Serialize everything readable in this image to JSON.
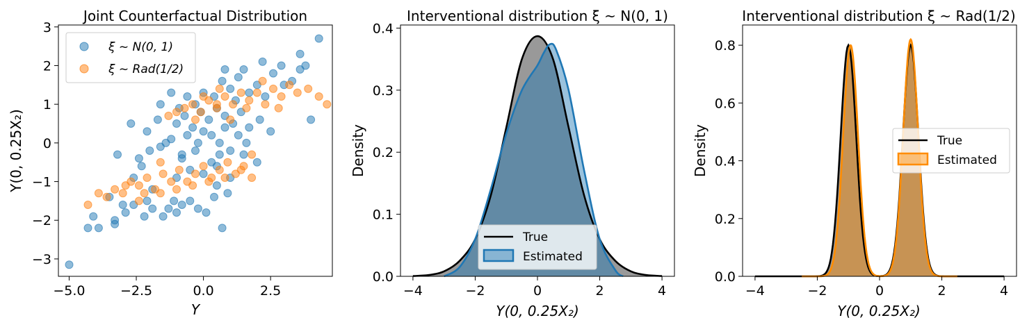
{
  "colors": {
    "blue": "#1f77b4",
    "orange": "#ff7f0e",
    "true_line": "#000000",
    "true_fill": "#808080",
    "est_fill_blue": "#3478a8",
    "est_fill_orange": "#d9852a",
    "dark_orange_line": "#ff8c00"
  },
  "chart_data": [
    {
      "type": "scatter",
      "title": "Joint Counterfactual Distribution",
      "xlabel": "Y",
      "ylabel": "Y(0, 0.25X₂)",
      "xlim": [
        -5.4,
        4.8
      ],
      "ylim": [
        -3.45,
        3.05
      ],
      "x_ticks": [
        -5.0,
        -2.5,
        0.0,
        2.5
      ],
      "x_tick_labels": [
        "−5.0",
        "−2.5",
        "0.0",
        "2.5"
      ],
      "y_ticks": [
        -3,
        -2,
        -1,
        0,
        1,
        2,
        3
      ],
      "y_tick_labels": [
        "−3",
        "−2",
        "−1",
        "0",
        "1",
        "2",
        "3"
      ],
      "legend_position": "upper-left",
      "series": [
        {
          "name": "ξ ~ N(0, 1)",
          "points": [
            [
              -5.0,
              -3.15
            ],
            [
              -4.3,
              -2.2
            ],
            [
              -3.9,
              -2.2
            ],
            [
              -4.1,
              -1.9
            ],
            [
              -3.3,
              -2.0
            ],
            [
              -3.3,
              -2.1
            ],
            [
              -3.0,
              -1.6
            ],
            [
              -3.5,
              -1.4
            ],
            [
              -2.9,
              -1.8
            ],
            [
              -2.6,
              -1.6
            ],
            [
              -2.2,
              -1.9
            ],
            [
              -2.1,
              -1.5
            ],
            [
              -1.9,
              -1.7
            ],
            [
              -1.5,
              -1.9
            ],
            [
              -1.3,
              -1.7
            ],
            [
              -1.0,
              -1.8
            ],
            [
              -0.8,
              -1.6
            ],
            [
              -0.5,
              -1.5
            ],
            [
              -0.2,
              -1.7
            ],
            [
              0.1,
              -1.8
            ],
            [
              0.4,
              -1.4
            ],
            [
              0.7,
              -2.2
            ],
            [
              0.5,
              -1.1
            ],
            [
              0.9,
              -1.3
            ],
            [
              -1.1,
              -1.5
            ],
            [
              -1.9,
              -1.2
            ],
            [
              -3.2,
              -0.3
            ],
            [
              -2.4,
              -0.4
            ],
            [
              -2.0,
              -0.2
            ],
            [
              -1.6,
              -0.1
            ],
            [
              -1.2,
              0.1
            ],
            [
              -0.8,
              -0.3
            ],
            [
              -0.6,
              0.2
            ],
            [
              -0.3,
              -0.2
            ],
            [
              0.0,
              0.3
            ],
            [
              0.3,
              -0.5
            ],
            [
              0.6,
              0.0
            ],
            [
              0.8,
              0.4
            ],
            [
              1.0,
              -0.2
            ],
            [
              1.3,
              0.2
            ],
            [
              1.6,
              0.0
            ],
            [
              2.0,
              -0.5
            ],
            [
              -2.7,
              0.5
            ],
            [
              -2.1,
              0.3
            ],
            [
              -1.7,
              0.6
            ],
            [
              -1.4,
              0.0
            ],
            [
              -1.0,
              0.5
            ],
            [
              -0.7,
              0.7
            ],
            [
              -0.4,
              0.4
            ],
            [
              -0.1,
              0.8
            ],
            [
              0.2,
              0.6
            ],
            [
              0.5,
              0.9
            ],
            [
              0.8,
              0.7
            ],
            [
              1.1,
              0.5
            ],
            [
              1.4,
              0.8
            ],
            [
              1.7,
              0.4
            ],
            [
              2.1,
              0.6
            ],
            [
              2.5,
              0.3
            ],
            [
              -1.6,
              1.0
            ],
            [
              -1.2,
              1.3
            ],
            [
              -0.9,
              0.9
            ],
            [
              -0.6,
              1.2
            ],
            [
              -0.3,
              1.0
            ],
            [
              0.0,
              1.3
            ],
            [
              0.4,
              1.2
            ],
            [
              0.7,
              1.6
            ],
            [
              1.0,
              1.4
            ],
            [
              1.3,
              1.7
            ],
            [
              1.7,
              1.3
            ],
            [
              2.0,
              1.5
            ],
            [
              2.3,
              1.2
            ],
            [
              2.6,
              1.8
            ],
            [
              3.0,
              1.5
            ],
            [
              3.3,
              1.6
            ],
            [
              3.6,
              1.9
            ],
            [
              3.8,
              2.0
            ],
            [
              4.0,
              0.6
            ],
            [
              4.3,
              2.7
            ],
            [
              3.6,
              2.3
            ],
            [
              2.9,
              2.0
            ],
            [
              2.2,
              2.1
            ],
            [
              1.5,
              1.9
            ],
            [
              0.8,
              1.9
            ],
            [
              1.2,
              1.1
            ],
            [
              -1.0,
              -0.9
            ],
            [
              -0.5,
              -0.7
            ],
            [
              0.0,
              -0.8
            ],
            [
              0.5,
              -0.6
            ],
            [
              1.0,
              -0.9
            ],
            [
              -0.2,
              0.0
            ],
            [
              0.3,
              0.2
            ],
            [
              -0.8,
              -0.4
            ],
            [
              1.5,
              -0.3
            ],
            [
              -2.6,
              -0.9
            ],
            [
              -2.3,
              -0.6
            ],
            [
              0.6,
              -0.3
            ]
          ]
        },
        {
          "name": "ξ ~ Rad(1/2)",
          "points": [
            [
              -4.3,
              -1.6
            ],
            [
              -3.9,
              -1.3
            ],
            [
              -3.6,
              -1.4
            ],
            [
              -3.3,
              -1.2
            ],
            [
              -3.0,
              -1.3
            ],
            [
              -2.7,
              -1.0
            ],
            [
              -2.4,
              -1.1
            ],
            [
              -2.1,
              -0.9
            ],
            [
              -1.8,
              -1.2
            ],
            [
              -1.5,
              -0.8
            ],
            [
              -1.2,
              -1.0
            ],
            [
              -0.9,
              -0.7
            ],
            [
              -0.6,
              -1.0
            ],
            [
              -0.3,
              -0.8
            ],
            [
              0.0,
              -0.6
            ],
            [
              0.3,
              -0.9
            ],
            [
              0.6,
              -0.7
            ],
            [
              0.9,
              -0.5
            ],
            [
              1.2,
              -0.8
            ],
            [
              1.5,
              -0.6
            ],
            [
              1.8,
              -0.9
            ],
            [
              -2.9,
              -1.1
            ],
            [
              -2.2,
              -1.3
            ],
            [
              -1.6,
              -1.3
            ],
            [
              -1.0,
              -1.2
            ],
            [
              -0.4,
              -1.1
            ],
            [
              0.2,
              -1.0
            ],
            [
              0.8,
              -0.9
            ],
            [
              1.4,
              -0.7
            ],
            [
              -1.3,
              0.7
            ],
            [
              -1.0,
              0.8
            ],
            [
              -0.7,
              0.9
            ],
            [
              -0.4,
              1.0
            ],
            [
              -0.1,
              0.8
            ],
            [
              0.2,
              1.1
            ],
            [
              0.5,
              0.9
            ],
            [
              0.8,
              1.2
            ],
            [
              1.1,
              1.0
            ],
            [
              1.4,
              1.3
            ],
            [
              1.7,
              1.1
            ],
            [
              2.0,
              1.3
            ],
            [
              2.3,
              1.0
            ],
            [
              2.6,
              1.4
            ],
            [
              2.9,
              1.2
            ],
            [
              3.2,
              1.5
            ],
            [
              3.5,
              1.3
            ],
            [
              3.9,
              1.4
            ],
            [
              4.3,
              1.2
            ],
            [
              4.6,
              1.0
            ],
            [
              -0.3,
              0.6
            ],
            [
              0.0,
              1.2
            ],
            [
              0.6,
              1.4
            ],
            [
              1.0,
              0.6
            ],
            [
              1.6,
              0.9
            ],
            [
              2.2,
              1.6
            ],
            [
              2.8,
              0.9
            ],
            [
              1.8,
              -0.3
            ],
            [
              -1.6,
              -0.5
            ],
            [
              -2.4,
              -1.5
            ],
            [
              0.5,
              1.0
            ]
          ]
        }
      ]
    },
    {
      "type": "area",
      "title": "Interventional distribution ξ ~ N(0, 1)",
      "xlabel": "Y(0, 0.25X₂)",
      "ylabel": "Density",
      "xlim": [
        -4.4,
        4.4
      ],
      "ylim": [
        0.0,
        0.405
      ],
      "x_ticks": [
        -4,
        -2,
        0,
        2,
        4
      ],
      "x_tick_labels": [
        "−4",
        "−2",
        "0",
        "2",
        "4"
      ],
      "y_ticks": [
        0.0,
        0.1,
        0.2,
        0.3,
        0.4
      ],
      "y_tick_labels": [
        "0.0",
        "0.1",
        "0.2",
        "0.3",
        "0.4"
      ],
      "legend_position": "lower-center",
      "series": [
        {
          "name": "True",
          "x": [
            -4.0,
            -3.5,
            -3.0,
            -2.5,
            -2.0,
            -1.5,
            -1.0,
            -0.5,
            0.0,
            0.5,
            1.0,
            1.5,
            2.0,
            2.5,
            3.0,
            3.5,
            4.0
          ],
          "y": [
            0.0005,
            0.002,
            0.008,
            0.025,
            0.06,
            0.13,
            0.24,
            0.35,
            0.387,
            0.35,
            0.24,
            0.13,
            0.06,
            0.025,
            0.008,
            0.002,
            0.0005
          ]
        },
        {
          "name": "Estimated",
          "x": [
            -3.0,
            -2.5,
            -2.0,
            -1.5,
            -1.0,
            -0.5,
            0.0,
            0.2,
            0.4,
            0.6,
            1.0,
            1.5,
            2.0,
            2.5,
            2.75
          ],
          "y": [
            0.0,
            0.015,
            0.06,
            0.14,
            0.23,
            0.3,
            0.34,
            0.36,
            0.374,
            0.365,
            0.3,
            0.17,
            0.06,
            0.01,
            0.0
          ]
        }
      ]
    },
    {
      "type": "area",
      "title": "Interventional distribution ξ ~ Rad(1/2)",
      "xlabel": "Y(0, 0.25X₂)",
      "ylabel": "Density",
      "xlim": [
        -4.4,
        4.4
      ],
      "ylim": [
        0.0,
        0.87
      ],
      "x_ticks": [
        -4,
        -2,
        0,
        2,
        4
      ],
      "x_tick_labels": [
        "−4",
        "−2",
        "0",
        "2",
        "4"
      ],
      "y_ticks": [
        0.0,
        0.2,
        0.4,
        0.6,
        0.8
      ],
      "y_tick_labels": [
        "0.0",
        "0.2",
        "0.4",
        "0.6",
        "0.8"
      ],
      "legend_position": "center-right",
      "series": [
        {
          "name": "True",
          "peaks": [
            {
              "center": -1.0,
              "height": 0.8,
              "sd": 0.25
            },
            {
              "center": 1.0,
              "height": 0.8,
              "sd": 0.25
            }
          ],
          "x_range": [
            -4.0,
            4.0
          ]
        },
        {
          "name": "Estimated",
          "peaks": [
            {
              "center": -0.93,
              "height": 0.8,
              "sd": 0.24
            },
            {
              "center": 1.0,
              "height": 0.82,
              "sd": 0.24
            }
          ],
          "x_range": [
            -2.5,
            2.5
          ]
        }
      ]
    }
  ]
}
